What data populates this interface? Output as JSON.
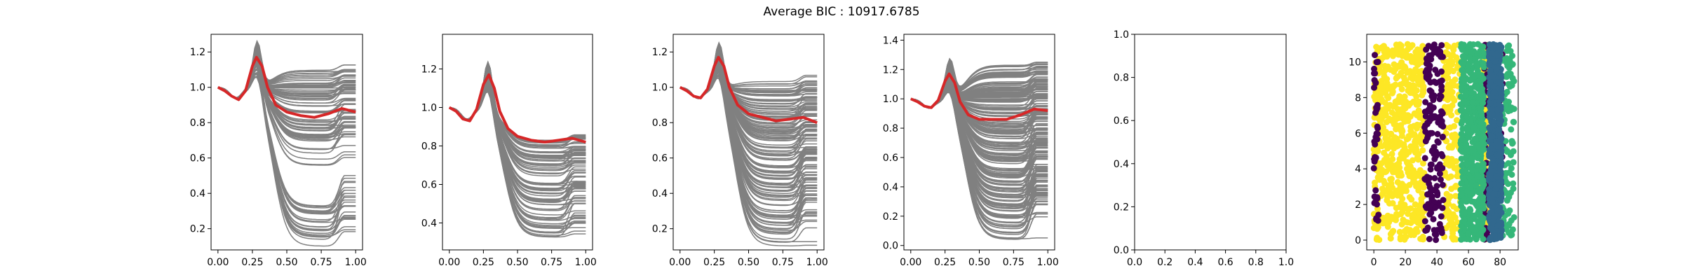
{
  "figure": {
    "title": "Average BIC : 10917.6785"
  },
  "colors": {
    "curve": "#808080",
    "mean": "#d62728",
    "cluster_purple": "#440154",
    "cluster_blue": "#31688e",
    "cluster_green": "#35b779",
    "cluster_yellow": "#fde725"
  },
  "chart_data": [
    {
      "type": "line",
      "panel": 1,
      "x_ticks": [
        "0.00",
        "0.25",
        "0.50",
        "0.75",
        "1.00"
      ],
      "y_ticks": [
        "0.2",
        "0.4",
        "0.6",
        "0.8",
        "1.0",
        "1.2"
      ],
      "xlim": [
        -0.05,
        1.05
      ],
      "ylim": [
        0.08,
        1.3
      ],
      "mean_series": {
        "x": [
          0,
          0.05,
          0.1,
          0.15,
          0.2,
          0.25,
          0.28,
          0.32,
          0.36,
          0.42,
          0.5,
          0.6,
          0.7,
          0.8,
          0.9,
          1.0
        ],
        "y": [
          1.0,
          0.98,
          0.95,
          0.93,
          0.98,
          1.12,
          1.17,
          1.12,
          1.0,
          0.9,
          0.86,
          0.84,
          0.83,
          0.85,
          0.88,
          0.86
        ]
      },
      "gray_curve_count": 100,
      "gray_end_range": [
        0.1,
        1.25
      ],
      "gray_low_group_end_range": [
        0.1,
        0.33
      ]
    },
    {
      "type": "line",
      "panel": 2,
      "x_ticks": [
        "0.00",
        "0.25",
        "0.50",
        "0.75",
        "1.00"
      ],
      "y_ticks": [
        "0.4",
        "0.6",
        "0.8",
        "1.0",
        "1.2"
      ],
      "xlim": [
        -0.05,
        1.05
      ],
      "ylim": [
        0.26,
        1.38
      ],
      "mean_series": {
        "x": [
          0,
          0.05,
          0.1,
          0.15,
          0.2,
          0.25,
          0.29,
          0.33,
          0.37,
          0.43,
          0.5,
          0.6,
          0.7,
          0.8,
          0.9,
          1.0
        ],
        "y": [
          1.0,
          0.98,
          0.94,
          0.93,
          0.99,
          1.12,
          1.17,
          1.1,
          0.98,
          0.89,
          0.85,
          0.83,
          0.82,
          0.83,
          0.84,
          0.82
        ]
      },
      "gray_curve_count": 90,
      "gray_end_range": [
        0.32,
        0.98
      ]
    },
    {
      "type": "line",
      "panel": 3,
      "x_ticks": [
        "0.00",
        "0.25",
        "0.50",
        "0.75",
        "1.00"
      ],
      "y_ticks": [
        "0.2",
        "0.4",
        "0.6",
        "0.8",
        "1.0",
        "1.2"
      ],
      "xlim": [
        -0.05,
        1.05
      ],
      "ylim": [
        0.08,
        1.3
      ],
      "mean_series": {
        "x": [
          0,
          0.05,
          0.1,
          0.15,
          0.2,
          0.25,
          0.28,
          0.32,
          0.36,
          0.42,
          0.5,
          0.6,
          0.7,
          0.8,
          0.9,
          1.0
        ],
        "y": [
          1.0,
          0.98,
          0.95,
          0.94,
          0.99,
          1.12,
          1.17,
          1.12,
          1.0,
          0.9,
          0.85,
          0.83,
          0.81,
          0.82,
          0.83,
          0.8
        ]
      },
      "gray_curve_count": 140,
      "gray_end_range": [
        0.1,
        1.19
      ]
    },
    {
      "type": "line",
      "panel": 4,
      "x_ticks": [
        "0.00",
        "0.25",
        "0.50",
        "0.75",
        "1.00"
      ],
      "y_ticks": [
        "0.0",
        "0.2",
        "0.4",
        "0.6",
        "0.8",
        "1.0",
        "1.2",
        "1.4"
      ],
      "xlim": [
        -0.05,
        1.05
      ],
      "ylim": [
        -0.03,
        1.44
      ],
      "mean_series": {
        "x": [
          0,
          0.05,
          0.1,
          0.15,
          0.2,
          0.25,
          0.28,
          0.32,
          0.36,
          0.42,
          0.5,
          0.6,
          0.7,
          0.8,
          0.9,
          1.0
        ],
        "y": [
          1.0,
          0.98,
          0.95,
          0.94,
          0.99,
          1.12,
          1.17,
          1.11,
          0.98,
          0.89,
          0.86,
          0.86,
          0.86,
          0.89,
          0.93,
          0.92
        ]
      },
      "gray_curve_count": 220,
      "gray_end_range": [
        0.03,
        1.38
      ]
    },
    {
      "type": "line",
      "panel": 5,
      "empty": true,
      "x_ticks": [
        "0.0",
        "0.2",
        "0.4",
        "0.6",
        "0.8",
        "1.0"
      ],
      "y_ticks": [
        "0.0",
        "0.2",
        "0.4",
        "0.6",
        "0.8",
        "1.0"
      ],
      "xlim": [
        0,
        1
      ],
      "ylim": [
        0,
        1
      ]
    },
    {
      "type": "scatter",
      "panel": 6,
      "x_ticks": [
        "0",
        "20",
        "40",
        "60",
        "80"
      ],
      "y_ticks": [
        "0",
        "2",
        "4",
        "6",
        "8",
        "10"
      ],
      "xlim": [
        -4.5,
        91.5
      ],
      "ylim": [
        -0.55,
        11.55
      ],
      "y_range": [
        0,
        11
      ],
      "clusters": [
        {
          "color": "#fde725",
          "x_ranges": [
            [
              0,
              32
            ],
            [
              44,
              55
            ],
            [
              68,
              73
            ]
          ],
          "count": 900
        },
        {
          "color": "#440154",
          "x_ranges": [
            [
              32,
              44
            ],
            [
              0,
              3
            ],
            [
              70,
              72
            ],
            [
              78,
              82
            ]
          ],
          "count": 330
        },
        {
          "color": "#35b779",
          "x_ranges": [
            [
              55,
              70
            ],
            [
              80,
              89
            ]
          ],
          "count": 520
        },
        {
          "color": "#31688e",
          "x_ranges": [
            [
              73,
              81
            ]
          ],
          "count": 280
        }
      ]
    }
  ]
}
